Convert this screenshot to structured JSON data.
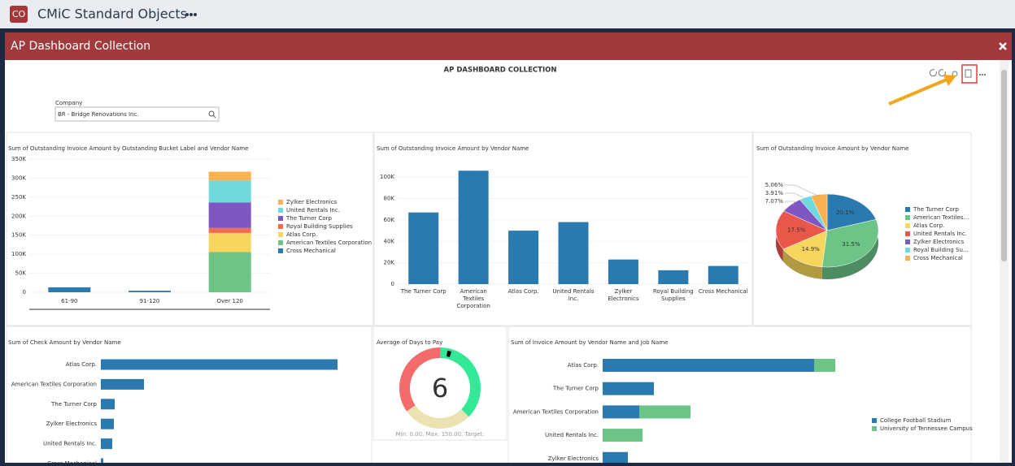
{
  "app_bar": {
    "badge": "CO",
    "title": "CMiC Standard Objects"
  },
  "modal": {
    "title": "AP Dashboard Collection"
  },
  "dashboard": {
    "title": "AP DASHBOARD COLLECTION",
    "filter_label": "Company",
    "filter_value": "BR - Bridge Renovations Inc."
  },
  "chart_data": [
    {
      "type": "stacked_bar",
      "title": "Sum of Outstanding Invoice Amount by Outstanding Bucket Label and Vendor Name",
      "categories": [
        "61-90",
        "91-120",
        "Over 120"
      ],
      "series": [
        {
          "name": "Cross Mechanical",
          "color": "#2a7ab0",
          "values": [
            13000,
            4000,
            0
          ]
        },
        {
          "name": "American Textiles Corporation",
          "color": "#6cc487",
          "values": [
            0,
            0,
            106000
          ]
        },
        {
          "name": "Atlas Corp.",
          "color": "#f7d65d",
          "values": [
            0,
            0,
            50000
          ]
        },
        {
          "name": "Royal Building Supplies",
          "color": "#f26b4e",
          "values": [
            0,
            0,
            13000
          ]
        },
        {
          "name": "The Turner Corp",
          "color": "#7e57c2",
          "values": [
            0,
            0,
            67000
          ]
        },
        {
          "name": "United Rentals Inc.",
          "color": "#6fd9dc",
          "values": [
            0,
            0,
            58000
          ]
        },
        {
          "name": "Zylker Electronics",
          "color": "#f9b251",
          "values": [
            0,
            0,
            23000
          ]
        }
      ],
      "ylim": [
        0,
        350000
      ],
      "yticks": [
        0,
        {
          "value": 50000,
          "label": "50K"
        },
        {
          "value": 100000,
          "label": "100K"
        },
        {
          "value": 150000,
          "label": "150K"
        },
        {
          "value": 200000,
          "label": "200K"
        },
        {
          "value": 250000,
          "label": "250K"
        },
        {
          "value": 300000,
          "label": "300K"
        },
        {
          "value": 350000,
          "label": "350K"
        }
      ],
      "grid": true
    },
    {
      "type": "bar",
      "title": "Sum of Outstanding Invoice Amount by Vendor Name",
      "categories": [
        "The Turner Corp",
        "American Textiles Corporation",
        "Atlas Corp.",
        "United Rentals Inc.",
        "Zylker Electronics",
        "Royal Building Supplies",
        "Cross Mechanical"
      ],
      "values": [
        67000,
        106000,
        50000,
        58000,
        23000,
        13000,
        17000
      ],
      "color": "#2a7ab0",
      "ylim": [
        0,
        110000
      ],
      "yticks": [
        0,
        {
          "value": 20000,
          "label": "20K"
        },
        {
          "value": 40000,
          "label": "40K"
        },
        {
          "value": 60000,
          "label": "60K"
        },
        {
          "value": 80000,
          "label": "80K"
        },
        {
          "value": 100000,
          "label": "100K"
        }
      ],
      "grid": true
    },
    {
      "type": "pie",
      "title": "Sum of Outstanding Invoice Amount by Vendor Name",
      "categories": [
        "The Turner Corp",
        "American Textiles...",
        "Atlas Corp.",
        "United Rentals Inc.",
        "Zylker Electronics",
        "Royal Building Su...",
        "Cross Mechanical"
      ],
      "values": [
        20.1,
        31.5,
        14.9,
        17.5,
        7.07,
        3.91,
        5.06
      ],
      "value_labels": [
        "20.1%",
        "31.5%",
        "14.9%",
        "17.5%",
        "7.07%",
        "3.91%",
        "5.06%"
      ],
      "colors": [
        "#2a7ab0",
        "#6cc487",
        "#f7d65d",
        "#e9574a",
        "#7e57c2",
        "#6fd9dc",
        "#f9b251"
      ]
    },
    {
      "type": "hbar",
      "title": "Sum of Check Amount by Vendor Name",
      "categories": [
        "Atlas Corp.",
        "American Textiles Corporation",
        "The Turner Corp",
        "Zylker Electronics",
        "United Rentals Inc.",
        "Cross Mechanical"
      ],
      "values": [
        291000,
        53000,
        17000,
        16000,
        14000,
        3000
      ],
      "color": "#2a7ab0",
      "xlim": [
        0,
        320000
      ]
    },
    {
      "type": "gauge",
      "title": "Average of Days to Pay",
      "value": 6,
      "min": 0,
      "max": 150,
      "footer": "Min: 0.00, Max: 150.00, Target:"
    },
    {
      "type": "stacked_hbar",
      "title": "Sum of Invoice Amount by Vendor Name and Job Name",
      "categories": [
        "Atlas Corp.",
        "The Turner Corp",
        "American Textiles Corporation",
        "United Rentals Inc.",
        "Zylker Electronics"
      ],
      "series": [
        {
          "name": "College Football Stadium",
          "color": "#2a7ab0",
          "values": [
            260000,
            63000,
            45000,
            0,
            31000
          ]
        },
        {
          "name": "University of Tennessee Campus",
          "color": "#6cc487",
          "values": [
            26000,
            0,
            63000,
            49000,
            0
          ]
        }
      ],
      "xlim": [
        0,
        315000
      ]
    }
  ]
}
